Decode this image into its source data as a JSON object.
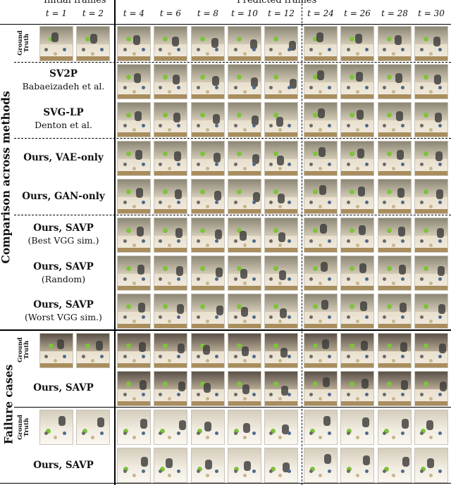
{
  "header": {
    "initial": "Initial frames",
    "predicted": "Predicted frames",
    "time_labels": [
      "t = 1",
      "t = 2",
      "t = 4",
      "t = 6",
      "t = 8",
      "t = 10",
      "t = 12",
      "t = 24",
      "t = 26",
      "t = 28",
      "t = 30"
    ]
  },
  "sections": {
    "comparison": "Comparison across methods",
    "failure": "Failure cases"
  },
  "rows": {
    "gt": "Ground Truth",
    "sv2p": {
      "name": "SV2P",
      "sub": "Babaeizadeh et al."
    },
    "svglp": {
      "name": "SVG-LP",
      "sub": "Denton et al."
    },
    "vae": {
      "name": "Ours, VAE-only"
    },
    "gan": {
      "name": "Ours, GAN-only"
    },
    "savp_best": {
      "name": "Ours, SAVP",
      "sub": "(Best VGG sim.)"
    },
    "savp_random": {
      "name": "Ours, SAVP",
      "sub": "(Random)"
    },
    "savp_worst": {
      "name": "Ours, SAVP",
      "sub": "(Worst VGG sim.)"
    },
    "fail1_gt": "Ground Truth",
    "fail1_savp": {
      "name": "Ours, SAVP"
    },
    "fail2_gt": "Ground Truth",
    "fail2_savp": {
      "name": "Ours, SAVP"
    }
  },
  "colors": {
    "floor": "#eee7d8",
    "robot": "#3a3a3a",
    "green_object": "#7ec33b",
    "shelf": "#a98d5d"
  }
}
